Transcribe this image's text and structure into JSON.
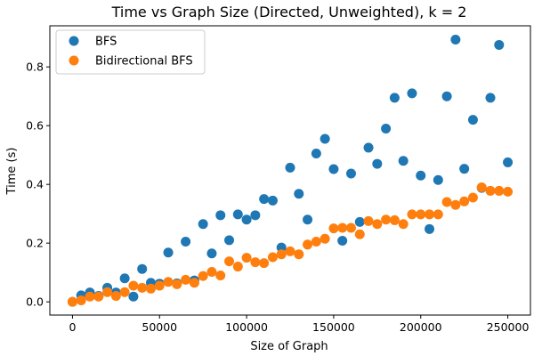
{
  "chart_data": {
    "type": "scatter",
    "title": "Time vs Graph Size (Directed, Unweighted), k = 2",
    "xlabel": "Size of Graph",
    "ylabel": "Time (s)",
    "xlim": [
      -13000,
      263000
    ],
    "ylim": [
      -0.045,
      0.94
    ],
    "xticks": [
      0,
      50000,
      100000,
      150000,
      200000,
      250000
    ],
    "xtick_labels": [
      "0",
      "50000",
      "100000",
      "150000",
      "200000",
      "250000"
    ],
    "yticks": [
      0.0,
      0.2,
      0.4,
      0.6,
      0.8
    ],
    "ytick_labels": [
      "0.0",
      "0.2",
      "0.4",
      "0.6",
      "0.8"
    ],
    "grid": false,
    "legend_position": "top-left",
    "series": [
      {
        "name": "BFS",
        "color": "#1f77b4",
        "x": [
          0,
          5000,
          10000,
          15000,
          20000,
          25000,
          30000,
          35000,
          40000,
          45000,
          50000,
          55000,
          60000,
          65000,
          70000,
          75000,
          80000,
          85000,
          90000,
          95000,
          100000,
          105000,
          110000,
          115000,
          120000,
          125000,
          130000,
          135000,
          140000,
          145000,
          150000,
          155000,
          160000,
          165000,
          170000,
          175000,
          180000,
          185000,
          190000,
          195000,
          200000,
          205000,
          210000,
          215000,
          220000,
          225000,
          230000,
          235000,
          240000,
          245000,
          250000
        ],
        "y": [
          0.0,
          0.022,
          0.032,
          0.02,
          0.048,
          0.032,
          0.08,
          0.018,
          0.112,
          0.065,
          0.062,
          0.168,
          0.063,
          0.205,
          0.073,
          0.265,
          0.165,
          0.295,
          0.21,
          0.298,
          0.28,
          0.295,
          0.35,
          0.345,
          0.185,
          0.457,
          0.368,
          0.28,
          0.505,
          0.555,
          0.452,
          0.208,
          0.437,
          0.272,
          0.525,
          0.47,
          0.59,
          0.695,
          0.48,
          0.71,
          0.43,
          0.248,
          0.415,
          0.7,
          0.893,
          0.453,
          0.62,
          0.388,
          0.695,
          0.875,
          0.475
        ]
      },
      {
        "name": "Bidirectional BFS",
        "color": "#ff7f0e",
        "x": [
          0,
          5000,
          10000,
          15000,
          20000,
          25000,
          30000,
          35000,
          40000,
          45000,
          50000,
          55000,
          60000,
          65000,
          70000,
          75000,
          80000,
          85000,
          90000,
          95000,
          100000,
          105000,
          110000,
          115000,
          120000,
          125000,
          130000,
          135000,
          140000,
          145000,
          150000,
          155000,
          160000,
          165000,
          170000,
          175000,
          180000,
          185000,
          190000,
          195000,
          200000,
          205000,
          210000,
          215000,
          220000,
          225000,
          230000,
          235000,
          240000,
          245000,
          250000
        ],
        "y": [
          0.0,
          0.005,
          0.018,
          0.018,
          0.033,
          0.02,
          0.033,
          0.055,
          0.048,
          0.045,
          0.055,
          0.068,
          0.06,
          0.075,
          0.065,
          0.088,
          0.102,
          0.09,
          0.138,
          0.12,
          0.15,
          0.135,
          0.132,
          0.152,
          0.162,
          0.172,
          0.162,
          0.195,
          0.205,
          0.215,
          0.25,
          0.252,
          0.252,
          0.23,
          0.275,
          0.265,
          0.28,
          0.278,
          0.265,
          0.298,
          0.298,
          0.298,
          0.298,
          0.34,
          0.33,
          0.342,
          0.355,
          0.39,
          0.378,
          0.378,
          0.375
        ]
      }
    ]
  }
}
